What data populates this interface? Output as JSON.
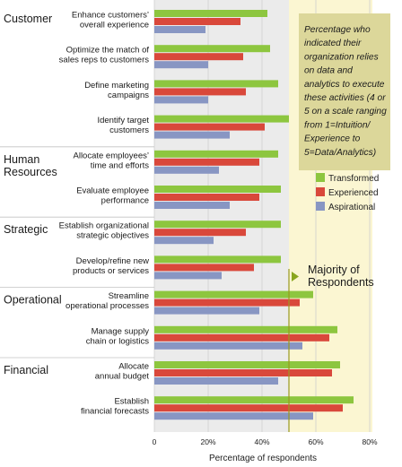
{
  "chart_data": {
    "type": "bar",
    "orientation": "horizontal",
    "xlabel": "Percentage of respondents",
    "xlim": [
      0,
      80
    ],
    "xticks": [
      "0",
      "20%",
      "40%",
      "60%",
      "80%"
    ],
    "legend_position": "right",
    "colors": {
      "Transformed": "#8dc63f",
      "Experienced": "#d9483b",
      "Aspirational": "#8896c3",
      "band": "#fbf6d2",
      "note_box": "#dcd79a",
      "plot_bg": "#ebebeb"
    },
    "groups": [
      {
        "name": "Customer",
        "categories": [
          0,
          1,
          2,
          3
        ]
      },
      {
        "name": "Human Resources",
        "categories": [
          4,
          5
        ]
      },
      {
        "name": "Strategic",
        "categories": [
          6,
          7
        ]
      },
      {
        "name": "Operational",
        "categories": [
          8,
          9
        ]
      },
      {
        "name": "Financial",
        "categories": [
          10,
          11
        ]
      }
    ],
    "categories": [
      "Enhance customers’ overall experience",
      "Optimize the match of sales reps to customers",
      "Define marketing campaigns",
      "Identify target customers",
      "Allocate employees’ time and efforts",
      "Evaluate employee performance",
      "Establish organizational strategic objectives",
      "Develop/refine new products or services",
      "Streamline operational processes",
      "Manage supply chain or logistics",
      "Allocate annual budget",
      "Establish financial forecasts"
    ],
    "category_lines": [
      [
        "Enhance customers’",
        "overall experience"
      ],
      [
        "Optimize the match of",
        "sales reps to customers"
      ],
      [
        "Define marketing",
        "campaigns"
      ],
      [
        "Identify target",
        "customers"
      ],
      [
        "Allocate employees’",
        "time and efforts"
      ],
      [
        "Evaluate employee",
        "performance"
      ],
      [
        "Establish organizational",
        "strategic objectives"
      ],
      [
        "Develop/refine new",
        "products or services"
      ],
      [
        "Streamline",
        "operational processes"
      ],
      [
        "Manage supply",
        "chain or logistics"
      ],
      [
        "Allocate",
        "annual budget"
      ],
      [
        "Establish",
        "financial forecasts"
      ]
    ],
    "series": [
      {
        "name": "Transformed",
        "values": [
          42,
          43,
          46,
          50,
          46,
          47,
          47,
          47,
          59,
          68,
          69,
          74
        ]
      },
      {
        "name": "Experienced",
        "values": [
          32,
          33,
          34,
          41,
          39,
          39,
          34,
          37,
          54,
          65,
          66,
          70
        ]
      },
      {
        "name": "Aspirational",
        "values": [
          19,
          20,
          20,
          28,
          24,
          28,
          22,
          25,
          39,
          55,
          46,
          59
        ]
      }
    ],
    "annotation_note": [
      "Percentage who",
      "indicated their",
      "organization relies",
      "on data and",
      "analytics to execute",
      "these activities (4 or",
      "5 on a scale ranging",
      "from 1=Intuition/",
      "Experience to",
      "5=Data/Analytics)"
    ],
    "majority_label": [
      "Majority of",
      "Respondents"
    ],
    "majority_threshold": 50
  }
}
